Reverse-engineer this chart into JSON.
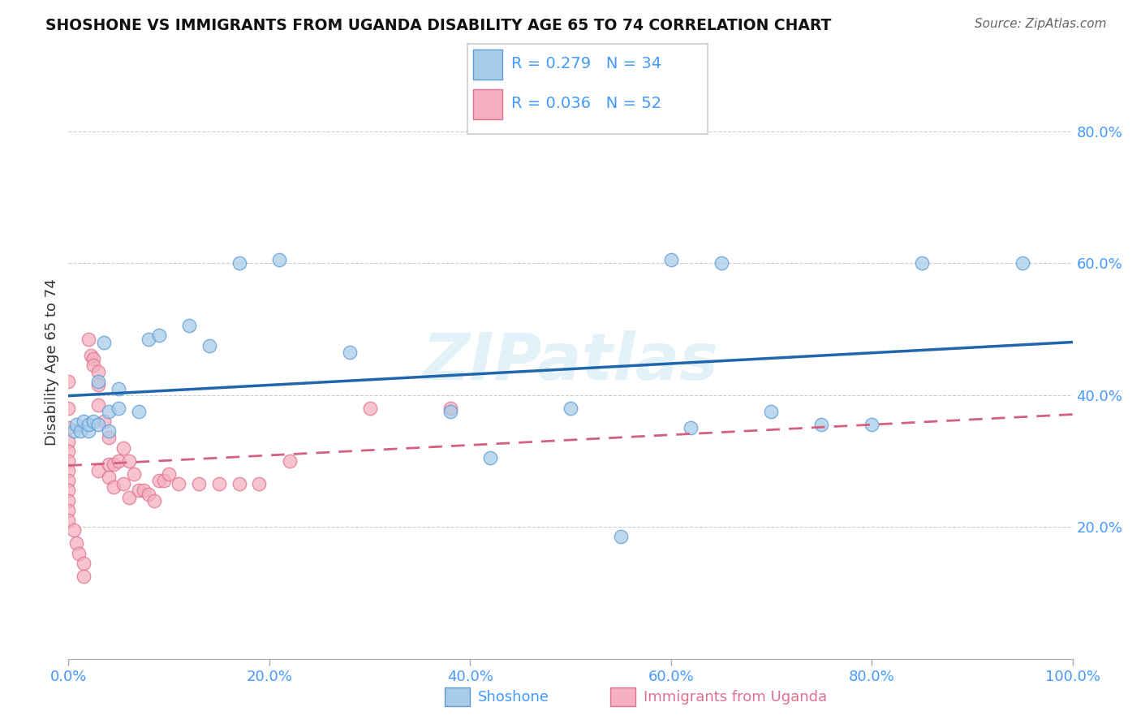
{
  "title": "SHOSHONE VS IMMIGRANTS FROM UGANDA DISABILITY AGE 65 TO 74 CORRELATION CHART",
  "source": "Source: ZipAtlas.com",
  "ylabel": "Disability Age 65 to 74",
  "watermark": "ZIPatlas",
  "label1": "Shoshone",
  "label2": "Immigrants from Uganda",
  "xlim": [
    0.0,
    1.0
  ],
  "ylim": [
    0.0,
    0.9
  ],
  "xtick_vals": [
    0.0,
    0.2,
    0.4,
    0.6,
    0.8,
    1.0
  ],
  "xtick_labels": [
    "0.0%",
    "20.0%",
    "40.0%",
    "60.0%",
    "80.0%",
    "100.0%"
  ],
  "ytick_vals": [
    0.2,
    0.4,
    0.6,
    0.8
  ],
  "ytick_labels": [
    "20.0%",
    "40.0%",
    "60.0%",
    "80.0%"
  ],
  "color_blue": "#a8cce8",
  "color_pink": "#f4afc0",
  "edge_blue": "#5b9bd5",
  "edge_pink": "#e07090",
  "trendline_blue": "#2166ac",
  "trendline_pink": "#d46080",
  "background": "#ffffff",
  "grid_color": "#cccccc",
  "tick_label_color": "#4499ff",
  "shoshone_x": [
    0.005,
    0.008,
    0.012,
    0.015,
    0.02,
    0.02,
    0.025,
    0.03,
    0.03,
    0.035,
    0.04,
    0.04,
    0.05,
    0.05,
    0.07,
    0.08,
    0.09,
    0.12,
    0.14,
    0.17,
    0.21,
    0.28,
    0.38,
    0.42,
    0.5,
    0.55,
    0.6,
    0.62,
    0.65,
    0.7,
    0.75,
    0.8,
    0.85,
    0.95
  ],
  "shoshone_y": [
    0.345,
    0.355,
    0.345,
    0.36,
    0.345,
    0.355,
    0.36,
    0.355,
    0.42,
    0.48,
    0.345,
    0.375,
    0.38,
    0.41,
    0.375,
    0.485,
    0.49,
    0.505,
    0.475,
    0.6,
    0.605,
    0.465,
    0.375,
    0.305,
    0.38,
    0.185,
    0.605,
    0.35,
    0.6,
    0.375,
    0.355,
    0.355,
    0.6,
    0.6
  ],
  "uganda_x": [
    0.0,
    0.0,
    0.0,
    0.0,
    0.0,
    0.0,
    0.0,
    0.0,
    0.0,
    0.0,
    0.0,
    0.0,
    0.005,
    0.008,
    0.01,
    0.015,
    0.015,
    0.02,
    0.022,
    0.025,
    0.025,
    0.03,
    0.03,
    0.03,
    0.03,
    0.035,
    0.04,
    0.04,
    0.04,
    0.045,
    0.045,
    0.05,
    0.055,
    0.055,
    0.06,
    0.06,
    0.065,
    0.07,
    0.075,
    0.08,
    0.085,
    0.09,
    0.095,
    0.1,
    0.11,
    0.13,
    0.15,
    0.17,
    0.19,
    0.22,
    0.3,
    0.38
  ],
  "uganda_y": [
    0.42,
    0.38,
    0.35,
    0.33,
    0.315,
    0.3,
    0.285,
    0.27,
    0.255,
    0.24,
    0.225,
    0.21,
    0.195,
    0.175,
    0.16,
    0.145,
    0.125,
    0.485,
    0.46,
    0.455,
    0.445,
    0.435,
    0.415,
    0.385,
    0.285,
    0.36,
    0.335,
    0.275,
    0.295,
    0.295,
    0.26,
    0.3,
    0.32,
    0.265,
    0.3,
    0.245,
    0.28,
    0.255,
    0.255,
    0.25,
    0.24,
    0.27,
    0.27,
    0.28,
    0.265,
    0.265,
    0.265,
    0.265,
    0.265,
    0.3,
    0.38,
    0.38
  ]
}
